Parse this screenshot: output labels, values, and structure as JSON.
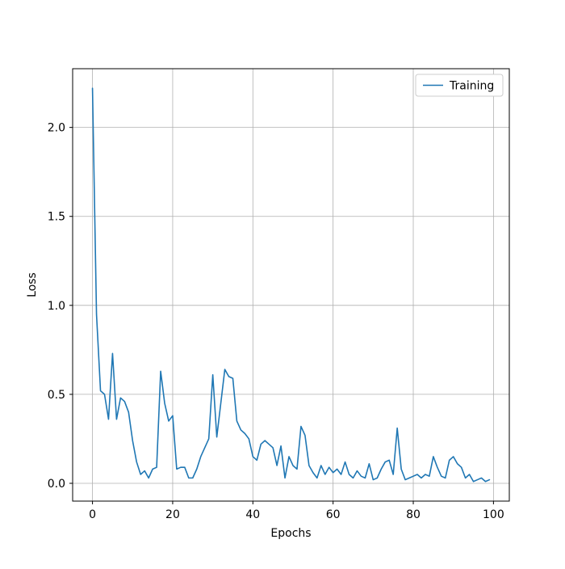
{
  "figure": {
    "background": "#ffffff"
  },
  "chart_data": {
    "type": "line",
    "title": "",
    "xlabel": "Epochs",
    "ylabel": "Loss",
    "x_range": [
      0,
      99
    ],
    "xlim": [
      -4.95,
      103.95
    ],
    "ylim": [
      -0.1,
      2.33
    ],
    "x_ticks": [
      0,
      20,
      40,
      60,
      80,
      100
    ],
    "x_tick_labels": [
      "0",
      "20",
      "40",
      "60",
      "80",
      "100"
    ],
    "y_ticks": [
      0.0,
      0.5,
      1.0,
      1.5,
      2.0
    ],
    "y_tick_labels": [
      "0.0",
      "0.5",
      "1.0",
      "1.5",
      "2.0"
    ],
    "grid": true,
    "grid_color": "#b0b0b0",
    "spine_color": "#000000",
    "legend": {
      "position": "upper right",
      "entries": [
        {
          "label": "Training",
          "color": "#1f77b4"
        }
      ],
      "edge_color": "#cccccc",
      "face_color": "#ffffff"
    },
    "series": [
      {
        "name": "Training",
        "color": "#1f77b4",
        "x_is_index": true,
        "y": [
          2.22,
          0.95,
          0.52,
          0.5,
          0.36,
          0.73,
          0.36,
          0.48,
          0.46,
          0.4,
          0.24,
          0.12,
          0.05,
          0.07,
          0.03,
          0.08,
          0.09,
          0.63,
          0.45,
          0.35,
          0.38,
          0.08,
          0.09,
          0.09,
          0.03,
          0.03,
          0.08,
          0.15,
          0.2,
          0.25,
          0.61,
          0.26,
          0.45,
          0.64,
          0.6,
          0.59,
          0.35,
          0.3,
          0.28,
          0.25,
          0.15,
          0.13,
          0.22,
          0.24,
          0.22,
          0.2,
          0.1,
          0.21,
          0.03,
          0.15,
          0.1,
          0.08,
          0.32,
          0.27,
          0.1,
          0.06,
          0.03,
          0.1,
          0.05,
          0.09,
          0.06,
          0.08,
          0.05,
          0.12,
          0.05,
          0.03,
          0.07,
          0.04,
          0.03,
          0.11,
          0.02,
          0.03,
          0.08,
          0.12,
          0.13,
          0.05,
          0.31,
          0.08,
          0.02,
          0.03,
          0.04,
          0.05,
          0.03,
          0.05,
          0.04,
          0.15,
          0.09,
          0.04,
          0.03,
          0.13,
          0.15,
          0.11,
          0.09,
          0.03,
          0.05,
          0.01,
          0.02,
          0.03,
          0.01,
          0.02
        ]
      }
    ]
  }
}
